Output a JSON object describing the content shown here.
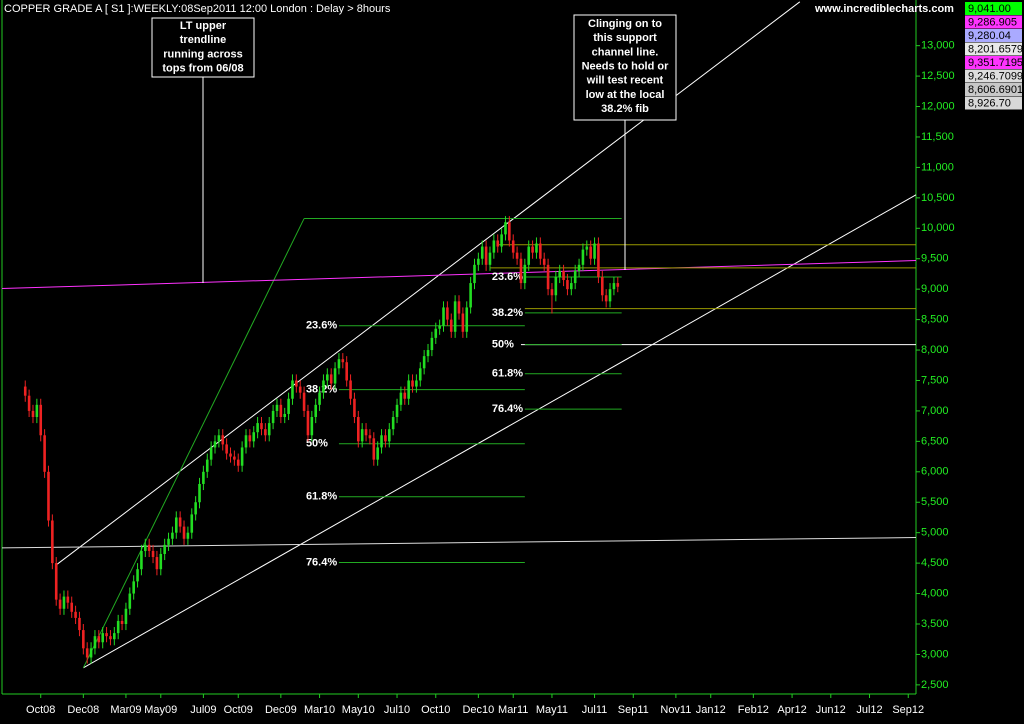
{
  "chart_data": {
    "type": "candlestick",
    "title": "COPPER GRADE A [ S1 ]:WEEKLY:08Sep2011 12:00 London  : Delay > 8hours",
    "source": "www.incrediblecharts.com",
    "up_color": "#22dd22",
    "down_color": "#ee2222",
    "ylim": [
      2350,
      13750
    ],
    "yticks": [
      {
        "value": 2500,
        "label": "2,500"
      },
      {
        "value": 3000,
        "label": "3,000"
      },
      {
        "value": 3500,
        "label": "3,500"
      },
      {
        "value": 4000,
        "label": "4,000"
      },
      {
        "value": 4500,
        "label": "4,500"
      },
      {
        "value": 5000,
        "label": "5,000"
      },
      {
        "value": 5500,
        "label": "5,500"
      },
      {
        "value": 6000,
        "label": "6,000"
      },
      {
        "value": 6500,
        "label": "6,500"
      },
      {
        "value": 7000,
        "label": "7,000"
      },
      {
        "value": 7500,
        "label": "7,500"
      },
      {
        "value": 8000,
        "label": "8,000"
      },
      {
        "value": 8500,
        "label": "8,500"
      },
      {
        "value": 9000,
        "label": "9,000"
      },
      {
        "value": 9500,
        "label": "9,500"
      },
      {
        "value": 10000,
        "label": "10,000"
      },
      {
        "value": 10500,
        "label": "10,500"
      },
      {
        "value": 11000,
        "label": "11,000"
      },
      {
        "value": 11500,
        "label": "11,500"
      },
      {
        "value": 12000,
        "label": "12,000"
      },
      {
        "value": 12500,
        "label": "12,500"
      },
      {
        "value": 13000,
        "label": "13,000"
      }
    ],
    "xlim": [
      -6,
      230
    ],
    "xticks": [
      {
        "value": 4,
        "label": "Oct08"
      },
      {
        "value": 15,
        "label": "Dec08"
      },
      {
        "value": 26,
        "label": "Mar09"
      },
      {
        "value": 35,
        "label": "May09"
      },
      {
        "value": 46,
        "label": "Jul09"
      },
      {
        "value": 55,
        "label": "Oct09"
      },
      {
        "value": 66,
        "label": "Dec09"
      },
      {
        "value": 76,
        "label": "Mar10"
      },
      {
        "value": 86,
        "label": "May10"
      },
      {
        "value": 96,
        "label": "Jul10"
      },
      {
        "value": 106,
        "label": "Oct10"
      },
      {
        "value": 117,
        "label": "Dec10"
      },
      {
        "value": 126,
        "label": "Mar11"
      },
      {
        "value": 136,
        "label": "May11"
      },
      {
        "value": 147,
        "label": "Jul11"
      },
      {
        "value": 157,
        "label": "Sep11"
      },
      {
        "value": 168,
        "label": "Nov11"
      },
      {
        "value": 177,
        "label": "Jan12"
      },
      {
        "value": 188,
        "label": "Feb12"
      },
      {
        "value": 198,
        "label": "Apr12"
      },
      {
        "value": 208,
        "label": "Jun12"
      },
      {
        "value": 218,
        "label": "Jul12"
      },
      {
        "value": 228,
        "label": "Sep12"
      }
    ],
    "candles": [
      [
        7400,
        7500,
        7150,
        7250
      ],
      [
        7250,
        7350,
        6900,
        7000
      ],
      [
        7000,
        7100,
        6800,
        6900
      ],
      [
        6900,
        7200,
        6800,
        7100
      ],
      [
        7100,
        7200,
        6500,
        6600
      ],
      [
        6600,
        6700,
        5900,
        6000
      ],
      [
        6000,
        6100,
        5100,
        5200
      ],
      [
        5200,
        5300,
        4400,
        4500
      ],
      [
        4500,
        4600,
        3800,
        3900
      ],
      [
        3900,
        4000,
        3650,
        3750
      ],
      [
        3750,
        4050,
        3650,
        3950
      ],
      [
        3950,
        4050,
        3750,
        3850
      ],
      [
        3850,
        3950,
        3600,
        3700
      ],
      [
        3700,
        3800,
        3500,
        3600
      ],
      [
        3600,
        3700,
        3300,
        3400
      ],
      [
        3400,
        3500,
        3000,
        3100
      ],
      [
        3100,
        3200,
        2850,
        2950
      ],
      [
        2950,
        3200,
        2850,
        3100
      ],
      [
        3100,
        3400,
        3000,
        3300
      ],
      [
        3300,
        3400,
        3100,
        3200
      ],
      [
        3200,
        3450,
        3100,
        3350
      ],
      [
        3350,
        3450,
        3200,
        3300
      ],
      [
        3300,
        3400,
        3150,
        3250
      ],
      [
        3250,
        3450,
        3150,
        3350
      ],
      [
        3350,
        3650,
        3250,
        3550
      ],
      [
        3550,
        3650,
        3400,
        3500
      ],
      [
        3500,
        3850,
        3400,
        3750
      ],
      [
        3750,
        4100,
        3650,
        4000
      ],
      [
        4000,
        4300,
        3900,
        4200
      ],
      [
        4200,
        4500,
        4100,
        4400
      ],
      [
        4400,
        4800,
        4300,
        4700
      ],
      [
        4700,
        4900,
        4600,
        4800
      ],
      [
        4800,
        4900,
        4600,
        4700
      ],
      [
        4700,
        4800,
        4500,
        4600
      ],
      [
        4600,
        4700,
        4300,
        4400
      ],
      [
        4400,
        4750,
        4300,
        4650
      ],
      [
        4650,
        4900,
        4550,
        4800
      ],
      [
        4800,
        5000,
        4700,
        4900
      ],
      [
        4900,
        5100,
        4800,
        5000
      ],
      [
        5000,
        5350,
        4900,
        5250
      ],
      [
        5250,
        5350,
        5000,
        5100
      ],
      [
        5100,
        5200,
        4800,
        4900
      ],
      [
        4900,
        5100,
        4800,
        5000
      ],
      [
        5000,
        5400,
        4900,
        5300
      ],
      [
        5300,
        5600,
        5200,
        5500
      ],
      [
        5500,
        5900,
        5400,
        5800
      ],
      [
        5800,
        6100,
        5700,
        6000
      ],
      [
        6000,
        6300,
        5900,
        6200
      ],
      [
        6200,
        6500,
        6100,
        6400
      ],
      [
        6400,
        6600,
        6300,
        6500
      ],
      [
        6500,
        6700,
        6400,
        6600
      ],
      [
        6600,
        6700,
        6350,
        6450
      ],
      [
        6450,
        6550,
        6200,
        6300
      ],
      [
        6300,
        6400,
        6150,
        6250
      ],
      [
        6250,
        6350,
        6100,
        6200
      ],
      [
        6200,
        6300,
        6000,
        6100
      ],
      [
        6100,
        6500,
        6000,
        6400
      ],
      [
        6400,
        6700,
        6300,
        6600
      ],
      [
        6600,
        6700,
        6400,
        6500
      ],
      [
        6500,
        6750,
        6400,
        6650
      ],
      [
        6650,
        6900,
        6550,
        6800
      ],
      [
        6800,
        6900,
        6600,
        6700
      ],
      [
        6700,
        6800,
        6500,
        6600
      ],
      [
        6600,
        6900,
        6500,
        6800
      ],
      [
        6800,
        7100,
        6700,
        7000
      ],
      [
        7000,
        7200,
        6900,
        7100
      ],
      [
        7100,
        7200,
        6800,
        6900
      ],
      [
        6900,
        7050,
        6800,
        6950
      ],
      [
        6950,
        7300,
        6850,
        7200
      ],
      [
        7200,
        7600,
        7100,
        7500
      ],
      [
        7500,
        7600,
        7300,
        7400
      ],
      [
        7400,
        7500,
        7200,
        7300
      ],
      [
        7300,
        7400,
        6900,
        7000
      ],
      [
        7000,
        7100,
        6500,
        6600
      ],
      [
        6600,
        7000,
        6500,
        6900
      ],
      [
        6900,
        7200,
        6800,
        7100
      ],
      [
        7100,
        7400,
        7000,
        7300
      ],
      [
        7300,
        7600,
        7200,
        7500
      ],
      [
        7500,
        7700,
        7400,
        7600
      ],
      [
        7600,
        7700,
        7350,
        7450
      ],
      [
        7450,
        7800,
        7350,
        7700
      ],
      [
        7700,
        7950,
        7600,
        7850
      ],
      [
        7850,
        7950,
        7700,
        7800
      ],
      [
        7800,
        7900,
        7400,
        7500
      ],
      [
        7500,
        7600,
        7100,
        7200
      ],
      [
        7200,
        7300,
        6800,
        6900
      ],
      [
        6900,
        7000,
        6400,
        6500
      ],
      [
        6500,
        6800,
        6400,
        6700
      ],
      [
        6700,
        6800,
        6500,
        6600
      ],
      [
        6600,
        6700,
        6450,
        6550
      ],
      [
        6550,
        6650,
        6100,
        6200
      ],
      [
        6200,
        6500,
        6100,
        6400
      ],
      [
        6400,
        6700,
        6300,
        6600
      ],
      [
        6600,
        6700,
        6400,
        6500
      ],
      [
        6500,
        6800,
        6400,
        6700
      ],
      [
        6700,
        7000,
        6600,
        6900
      ],
      [
        6900,
        7200,
        6800,
        7100
      ],
      [
        7100,
        7400,
        7000,
        7300
      ],
      [
        7300,
        7400,
        7100,
        7200
      ],
      [
        7200,
        7600,
        7100,
        7500
      ],
      [
        7500,
        7600,
        7300,
        7400
      ],
      [
        7400,
        7600,
        7300,
        7500
      ],
      [
        7500,
        7800,
        7400,
        7700
      ],
      [
        7700,
        8000,
        7600,
        7900
      ],
      [
        7900,
        8100,
        7800,
        8000
      ],
      [
        8000,
        8300,
        7900,
        8200
      ],
      [
        8200,
        8450,
        8100,
        8350
      ],
      [
        8350,
        8500,
        8250,
        8400
      ],
      [
        8400,
        8800,
        8300,
        8700
      ],
      [
        8700,
        8800,
        8400,
        8500
      ],
      [
        8500,
        8600,
        8200,
        8300
      ],
      [
        8300,
        8900,
        8200,
        8800
      ],
      [
        8800,
        8900,
        8500,
        8600
      ],
      [
        8600,
        8700,
        8200,
        8300
      ],
      [
        8300,
        8800,
        8200,
        8700
      ],
      [
        8700,
        9200,
        8600,
        9100
      ],
      [
        9100,
        9500,
        9000,
        9400
      ],
      [
        9400,
        9600,
        9300,
        9500
      ],
      [
        9500,
        9800,
        9400,
        9700
      ],
      [
        9700,
        9800,
        9300,
        9400
      ],
      [
        9400,
        9700,
        9300,
        9600
      ],
      [
        9600,
        9900,
        9500,
        9800
      ],
      [
        9800,
        9900,
        9600,
        9700
      ],
      [
        9700,
        10000,
        9600,
        9900
      ],
      [
        9900,
        10200,
        9800,
        10100
      ],
      [
        10100,
        10200,
        9700,
        9800
      ],
      [
        9800,
        9900,
        9500,
        9600
      ],
      [
        9600,
        9700,
        9400,
        9500
      ],
      [
        9500,
        9600,
        9000,
        9100
      ],
      [
        9100,
        9500,
        9000,
        9400
      ],
      [
        9400,
        9800,
        9300,
        9700
      ],
      [
        9700,
        9800,
        9500,
        9600
      ],
      [
        9600,
        9850,
        9500,
        9750
      ],
      [
        9750,
        9850,
        9400,
        9500
      ],
      [
        9500,
        9600,
        9300,
        9400
      ],
      [
        9400,
        9500,
        8900,
        9000
      ],
      [
        9000,
        9100,
        8600,
        8900
      ],
      [
        8900,
        9300,
        8800,
        9200
      ],
      [
        9200,
        9400,
        9100,
        9300
      ],
      [
        9300,
        9400,
        9050,
        9150
      ],
      [
        9150,
        9250,
        8900,
        9000
      ],
      [
        9000,
        9200,
        8900,
        9100
      ],
      [
        9100,
        9400,
        9000,
        9300
      ],
      [
        9300,
        9500,
        9200,
        9400
      ],
      [
        9400,
        9750,
        9300,
        9650
      ],
      [
        9650,
        9800,
        9550,
        9700
      ],
      [
        9700,
        9800,
        9400,
        9500
      ],
      [
        9500,
        9850,
        9400,
        9750
      ],
      [
        9750,
        9850,
        9100,
        9200
      ],
      [
        9200,
        9300,
        8800,
        8900
      ],
      [
        8900,
        9000,
        8700,
        8800
      ],
      [
        8800,
        9100,
        8700,
        9000
      ],
      [
        9000,
        9200,
        8900,
        9100
      ],
      [
        9100,
        9200,
        8950,
        9040
      ]
    ],
    "lines": [
      {
        "from": [
          8,
          4470
        ],
        "to": [
          200,
          13720
        ],
        "color": "#ffffff"
      },
      {
        "from": [
          15,
          2780
        ],
        "to": [
          230,
          10550
        ],
        "color": "#ffffff"
      },
      {
        "from": [
          15,
          2780
        ],
        "to": [
          72,
          10160
        ],
        "color": "#22aa22"
      },
      {
        "from": [
          72,
          10160
        ],
        "to": [
          154,
          10160
        ],
        "color": "#22aa22"
      },
      {
        "from": [
          -6,
          9010
        ],
        "to": [
          230,
          9470
        ],
        "color": "#ff33ff"
      },
      {
        "from": [
          -6,
          4750
        ],
        "to": [
          230,
          4920
        ],
        "color": "#dddddd"
      },
      {
        "from": [
          122,
          9730
        ],
        "to": [
          230,
          9730
        ],
        "color": "#999900"
      },
      {
        "from": [
          120,
          9350
        ],
        "to": [
          230,
          9350
        ],
        "color": "#999900"
      },
      {
        "from": [
          129,
          8680
        ],
        "to": [
          230,
          8680
        ],
        "color": "#999900"
      },
      {
        "from": [
          128,
          8090
        ],
        "to": [
          230,
          8090
        ],
        "color": "#ffffff"
      }
    ],
    "fibs": [
      {
        "from": 81,
        "to": 129,
        "color": "#22aa22",
        "levels": [
          {
            "label": "23.6%",
            "value": 8400
          },
          {
            "label": "38.2%",
            "value": 7350
          },
          {
            "label": "50%",
            "value": 6460
          },
          {
            "label": "61.8%",
            "value": 5590
          },
          {
            "label": "76.4%",
            "value": 4510
          }
        ]
      },
      {
        "from": 129,
        "to": 154,
        "color": "#22aa22",
        "levels": [
          {
            "label": "23.6%",
            "value": 9200
          },
          {
            "label": "38.2%",
            "value": 8610
          },
          {
            "label": "50%",
            "value": 8090
          },
          {
            "label": "61.8%",
            "value": 7610
          },
          {
            "label": "76.4%",
            "value": 7030
          }
        ]
      }
    ],
    "annotations": [
      {
        "lines": [
          "LT upper",
          "trendline",
          "running across",
          "tops from 06/08"
        ]
      },
      {
        "lines": [
          "Clinging on to",
          "this support",
          "channel line.",
          "Needs to hold or",
          "will test recent",
          "low at the local",
          "38.2% fib"
        ]
      }
    ],
    "price_boxes": [
      {
        "label": "9,041.00",
        "color": "#00ff00"
      },
      {
        "label": "9,286.905",
        "color": "#ff33ff"
      },
      {
        "label": "9,280.04",
        "color": "#aaaaff"
      },
      {
        "label": "8,201.6579",
        "color": "#e8e8e8"
      },
      {
        "label": "9,351.7195",
        "color": "#ff33ff"
      },
      {
        "label": "9,246.7099",
        "color": "#dddddd"
      },
      {
        "label": "8,606.6901",
        "color": "#c8c8c8"
      },
      {
        "label": "8,926.70",
        "color": "#d8d8d8"
      }
    ]
  }
}
